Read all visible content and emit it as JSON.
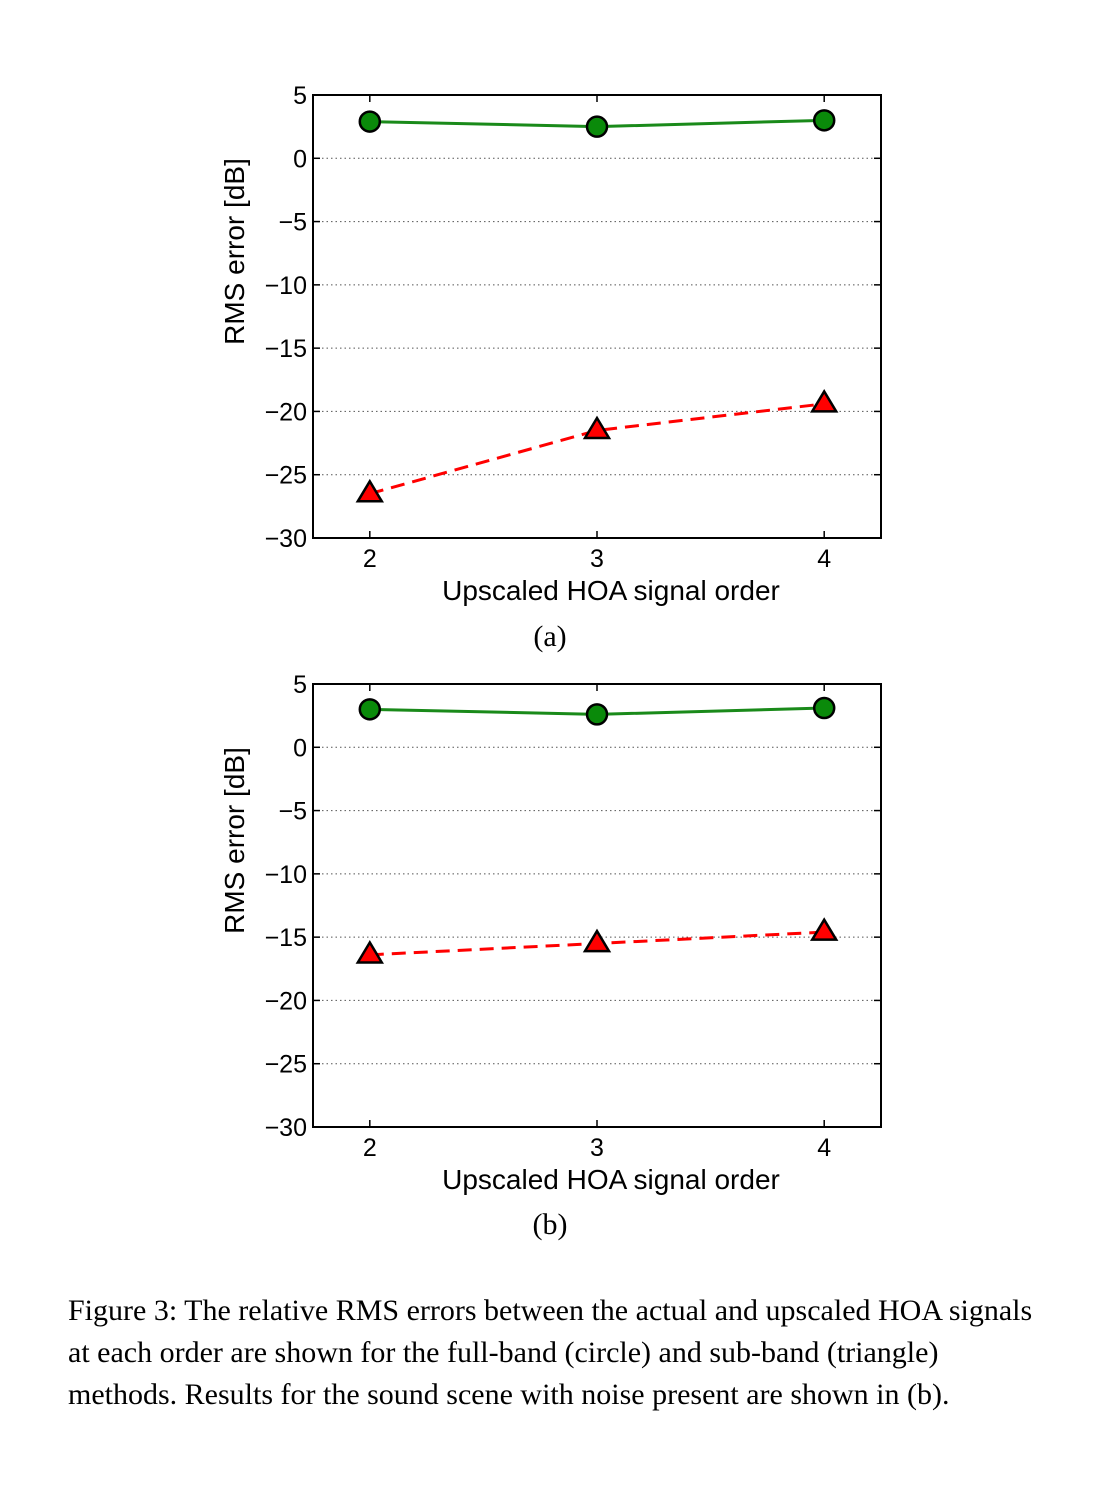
{
  "chart_data": [
    {
      "type": "line",
      "panel_label": "(a)",
      "xlabel": "Upscaled HOA signal order",
      "ylabel": "RMS error [dB]",
      "x": [
        2,
        3,
        4
      ],
      "xticks": [
        "2",
        "3",
        "4"
      ],
      "ylim": [
        -30,
        5
      ],
      "yticks": [
        "5",
        "0",
        "−5",
        "−10",
        "−15",
        "−20",
        "−25",
        "−30"
      ],
      "grid": "horizontal dotted",
      "series": [
        {
          "marker": "circle",
          "line": "solid",
          "color": "#1a8a1a",
          "values": [
            2.9,
            2.5,
            3.0
          ]
        },
        {
          "marker": "triangle",
          "line": "dashed",
          "color": "#ff0000",
          "values": [
            -26.5,
            -21.5,
            -19.4
          ]
        }
      ]
    },
    {
      "type": "line",
      "panel_label": "(b)",
      "xlabel": "Upscaled HOA signal order",
      "ylabel": "RMS error [dB]",
      "x": [
        2,
        3,
        4
      ],
      "xticks": [
        "2",
        "3",
        "4"
      ],
      "ylim": [
        -30,
        5
      ],
      "yticks": [
        "5",
        "0",
        "−5",
        "−10",
        "−15",
        "−20",
        "−25",
        "−30"
      ],
      "grid": "horizontal dotted",
      "series": [
        {
          "marker": "circle",
          "line": "solid",
          "color": "#1a8a1a",
          "values": [
            3.0,
            2.6,
            3.1
          ]
        },
        {
          "marker": "triangle",
          "line": "dashed",
          "color": "#ff0000",
          "values": [
            -16.4,
            -15.5,
            -14.6
          ]
        }
      ]
    }
  ],
  "caption": "Figure 3: The relative RMS errors between the actual and upscaled HOA signals at each order are shown for the full-band (circle) and sub-band (triangle) methods. Results for the sound scene with noise present are shown in (b)."
}
